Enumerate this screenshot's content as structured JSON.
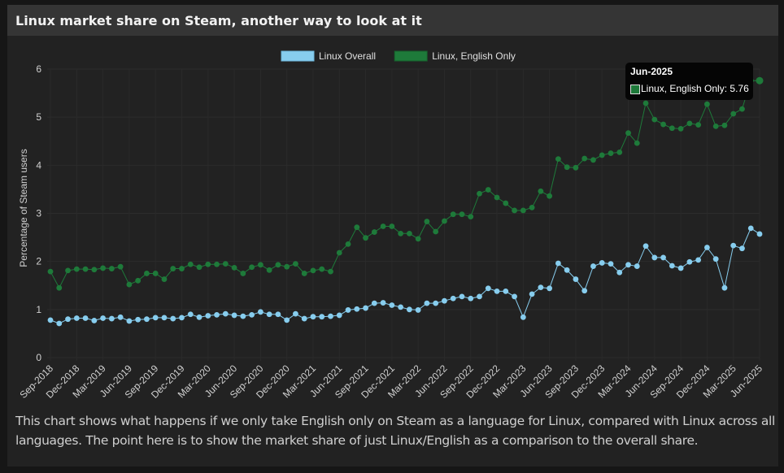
{
  "card": {
    "title": "Linux market share on Steam, another way to look at it",
    "description": "This chart shows what happens if we only take English only on Steam as a language for Linux, compared with Linux across all languages. The point here is to show the market share of just Linux/English as a comparison to the overall share."
  },
  "tooltip": {
    "title": "Jun-2025",
    "label": "Linux, English Only: 5.76",
    "swatch_color": "#1e7a3a"
  },
  "chart_data": {
    "type": "line",
    "title": "Linux market share on Steam, another way to look at it",
    "xlabel": "",
    "ylabel": "Percentage of Steam users",
    "ylim": [
      0,
      6
    ],
    "yticks": [
      0,
      1,
      2,
      3,
      4,
      5,
      6
    ],
    "grid": true,
    "legend_position": "top",
    "x_tick_labels": [
      "Sep-2018",
      "Dec-2018",
      "Mar-2019",
      "Jun-2019",
      "Sep-2019",
      "Dec-2019",
      "Mar-2020",
      "Jun-2020",
      "Sep-2020",
      "Dec-2020",
      "Mar-2021",
      "Jun-2021",
      "Sep-2021",
      "Dec-2021",
      "Mar-2022",
      "Jun-2022",
      "Sep-2022",
      "Dec-2022",
      "Mar-2023",
      "Jun-2023",
      "Sep-2023",
      "Dec-2023",
      "Mar-2024",
      "Jun-2024",
      "Sep-2024",
      "Dec-2024",
      "Mar-2025",
      "Jun-2025"
    ],
    "x_start": "Sep-2018",
    "x_end": "Jun-2025",
    "x_step": "monthly",
    "series": [
      {
        "name": "Linux Overall",
        "color": "#87cdee",
        "values": [
          0.78,
          0.71,
          0.8,
          0.82,
          0.82,
          0.77,
          0.82,
          0.81,
          0.84,
          0.76,
          0.79,
          0.8,
          0.83,
          0.83,
          0.81,
          0.83,
          0.9,
          0.84,
          0.87,
          0.89,
          0.91,
          0.88,
          0.86,
          0.89,
          0.95,
          0.9,
          0.9,
          0.78,
          0.91,
          0.81,
          0.85,
          0.85,
          0.86,
          0.88,
          0.99,
          1.01,
          1.03,
          1.13,
          1.14,
          1.09,
          1.05,
          1.0,
          0.99,
          1.13,
          1.13,
          1.18,
          1.23,
          1.27,
          1.23,
          1.27,
          1.44,
          1.38,
          1.38,
          1.27,
          0.84,
          1.32,
          1.46,
          1.44,
          1.96,
          1.82,
          1.63,
          1.39,
          1.9,
          1.97,
          1.95,
          1.77,
          1.93,
          1.9,
          2.32,
          2.08,
          2.08,
          1.91,
          1.86,
          1.99,
          2.03,
          2.29,
          2.05,
          1.45,
          2.33,
          2.27,
          2.69,
          2.57
        ]
      },
      {
        "name": "Linux, English Only",
        "color": "#1e7a3a",
        "values": [
          1.79,
          1.45,
          1.81,
          1.84,
          1.84,
          1.83,
          1.86,
          1.85,
          1.89,
          1.52,
          1.6,
          1.75,
          1.75,
          1.63,
          1.85,
          1.85,
          1.94,
          1.88,
          1.94,
          1.94,
          1.95,
          1.87,
          1.75,
          1.88,
          1.93,
          1.82,
          1.93,
          1.89,
          1.95,
          1.75,
          1.81,
          1.84,
          1.79,
          2.18,
          2.36,
          2.71,
          2.49,
          2.61,
          2.73,
          2.73,
          2.58,
          2.58,
          2.47,
          2.83,
          2.62,
          2.84,
          2.98,
          2.98,
          2.93,
          3.41,
          3.49,
          3.33,
          3.21,
          3.06,
          3.06,
          3.12,
          3.46,
          3.36,
          4.13,
          3.96,
          3.95,
          4.14,
          4.11,
          4.21,
          4.25,
          4.27,
          4.67,
          4.46,
          5.29,
          4.95,
          4.85,
          4.77,
          4.76,
          4.87,
          4.84,
          5.27,
          4.81,
          4.83,
          5.07,
          5.17,
          5.76,
          5.76
        ]
      }
    ]
  }
}
